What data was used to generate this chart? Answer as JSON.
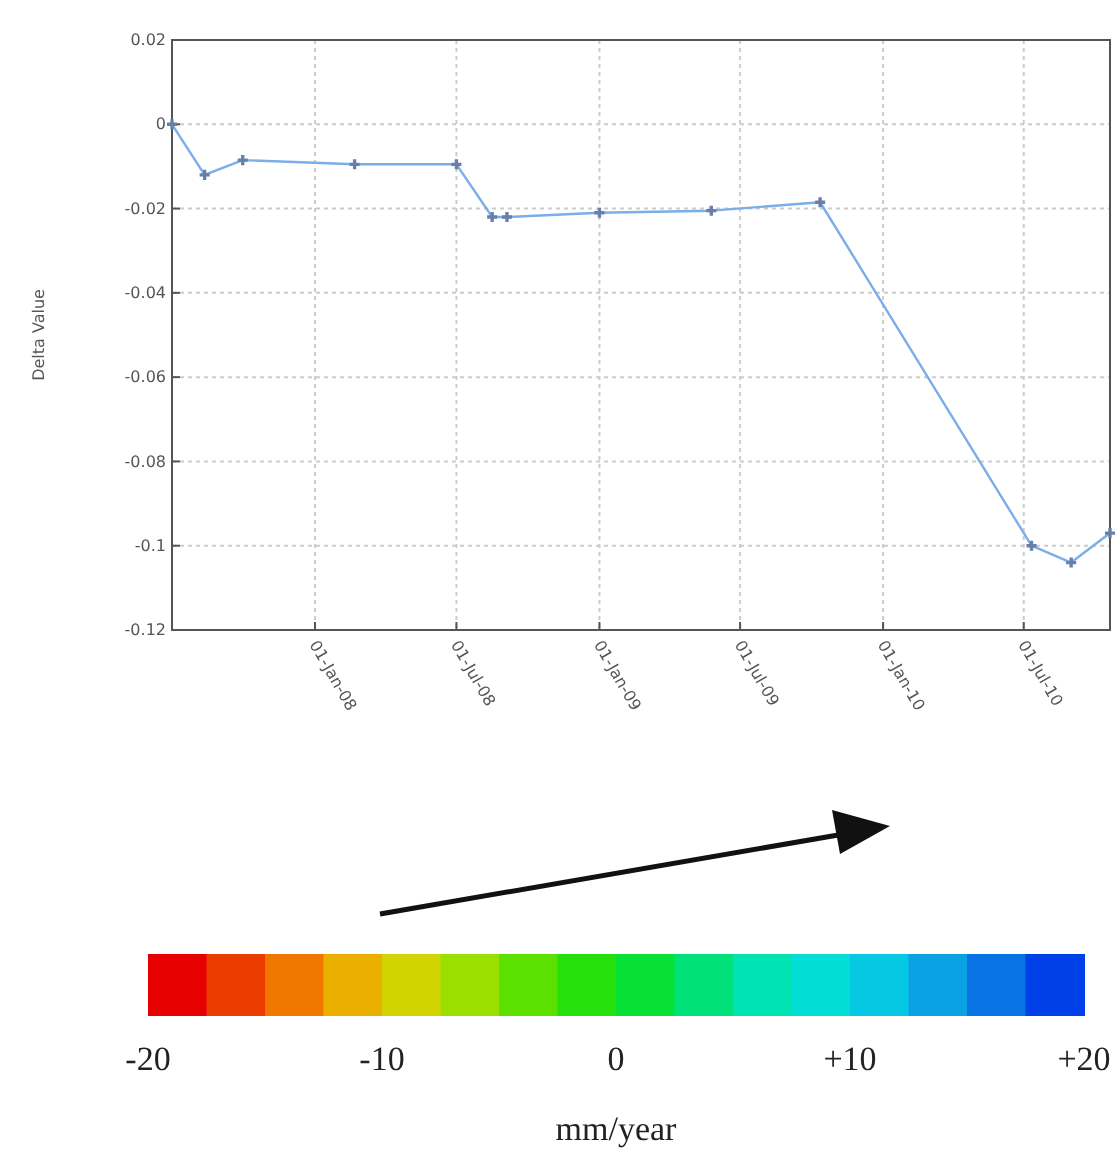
{
  "chart_data": {
    "type": "line",
    "ylabel": "Delta Value",
    "x": [
      "2007-07-01",
      "2007-08-12",
      "2007-09-30",
      "2008-02-21",
      "2008-07-01",
      "2008-08-16",
      "2008-09-04",
      "2009-01-01",
      "2009-05-25",
      "2009-10-12",
      "2010-07-11",
      "2010-08-31",
      "2010-10-20"
    ],
    "series": [
      {
        "color": "#7aaee8",
        "values": [
          0,
          -0.012,
          -0.0085,
          -0.0095,
          -0.0095,
          -0.022,
          -0.022,
          -0.021,
          -0.0205,
          -0.0185,
          -0.1,
          -0.104,
          -0.097
        ]
      }
    ],
    "xlim": [
      "2007-07-01",
      "2010-10-20"
    ],
    "xticks": [
      {
        "value": "2008-01-01",
        "label": "01-Jan-08"
      },
      {
        "value": "2008-07-01",
        "label": "01-Jul-08"
      },
      {
        "value": "2009-01-01",
        "label": "01-Jan-09"
      },
      {
        "value": "2009-07-01",
        "label": "01-Jul-09"
      },
      {
        "value": "2010-01-01",
        "label": "01-Jan-10"
      },
      {
        "value": "2010-07-01",
        "label": "01-Jul-10"
      }
    ],
    "ylim": [
      -0.12,
      0.02
    ],
    "yticks": [
      -0.12,
      -0.1,
      -0.08,
      -0.06,
      -0.04,
      -0.02,
      0,
      0.02
    ],
    "grid": true,
    "marker": "cross",
    "line_style": "solid",
    "clabel": "mm/year",
    "clim": [
      -20,
      20
    ],
    "cticks": [
      -20,
      -10,
      0,
      {
        "value": 10,
        "label": "+10"
      },
      {
        "value": 20,
        "label": "+20"
      }
    ]
  }
}
